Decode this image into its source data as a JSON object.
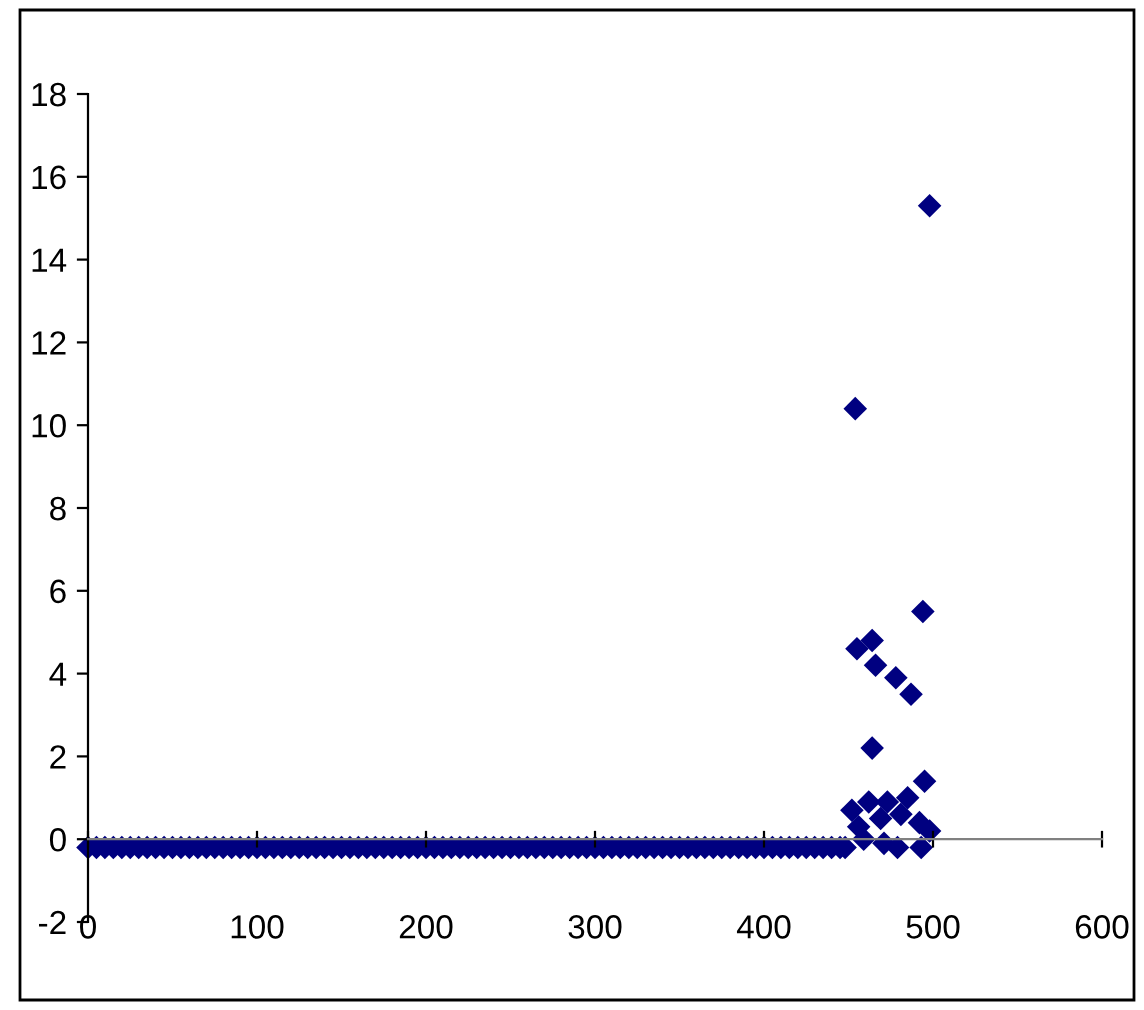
{
  "chart_data": {
    "type": "scatter",
    "marker": "diamond",
    "grid": false,
    "legend": false,
    "xlim": [
      0,
      600
    ],
    "ylim": [
      -2,
      18
    ],
    "xticks": [
      0,
      100,
      200,
      300,
      400,
      500,
      600
    ],
    "yticks": [
      -2,
      0,
      2,
      4,
      6,
      8,
      10,
      12,
      14,
      16,
      18
    ],
    "series": [
      {
        "color": "#000080",
        "x": [
          0,
          5,
          10,
          15,
          20,
          25,
          30,
          35,
          40,
          45,
          50,
          55,
          60,
          65,
          70,
          75,
          80,
          85,
          90,
          95,
          100,
          105,
          110,
          115,
          120,
          125,
          130,
          135,
          140,
          145,
          150,
          155,
          160,
          165,
          170,
          175,
          180,
          185,
          190,
          195,
          200,
          205,
          210,
          215,
          220,
          225,
          230,
          235,
          240,
          245,
          250,
          255,
          260,
          265,
          270,
          275,
          280,
          285,
          290,
          295,
          300,
          305,
          310,
          315,
          320,
          325,
          330,
          335,
          340,
          345,
          350,
          355,
          360,
          365,
          370,
          375,
          380,
          385,
          390,
          395,
          400,
          405,
          410,
          415,
          420,
          425,
          430,
          435,
          440,
          445,
          448,
          498,
          454,
          494,
          455,
          464,
          466,
          478,
          487,
          464,
          495,
          452,
          462,
          473,
          485,
          469,
          481,
          456,
          492,
          498,
          459,
          471,
          479,
          493
        ],
        "values": [
          -0.2,
          -0.2,
          -0.2,
          -0.2,
          -0.2,
          -0.2,
          -0.2,
          -0.2,
          -0.2,
          -0.2,
          -0.2,
          -0.2,
          -0.2,
          -0.2,
          -0.2,
          -0.2,
          -0.2,
          -0.2,
          -0.2,
          -0.2,
          -0.2,
          -0.2,
          -0.2,
          -0.2,
          -0.2,
          -0.2,
          -0.2,
          -0.2,
          -0.2,
          -0.2,
          -0.2,
          -0.2,
          -0.2,
          -0.2,
          -0.2,
          -0.2,
          -0.2,
          -0.2,
          -0.2,
          -0.2,
          -0.2,
          -0.2,
          -0.2,
          -0.2,
          -0.2,
          -0.2,
          -0.2,
          -0.2,
          -0.2,
          -0.2,
          -0.2,
          -0.2,
          -0.2,
          -0.2,
          -0.2,
          -0.2,
          -0.2,
          -0.2,
          -0.2,
          -0.2,
          -0.2,
          -0.2,
          -0.2,
          -0.2,
          -0.2,
          -0.2,
          -0.2,
          -0.2,
          -0.2,
          -0.2,
          -0.2,
          -0.2,
          -0.2,
          -0.2,
          -0.2,
          -0.2,
          -0.2,
          -0.2,
          -0.2,
          -0.2,
          -0.2,
          -0.2,
          -0.2,
          -0.2,
          -0.2,
          -0.2,
          -0.2,
          -0.2,
          -0.2,
          -0.2,
          -0.2,
          15.3,
          10.4,
          5.5,
          4.6,
          4.8,
          4.2,
          3.9,
          3.5,
          2.2,
          1.4,
          0.7,
          0.9,
          0.9,
          1.0,
          0.5,
          0.6,
          0.3,
          0.4,
          0.2,
          0.0,
          -0.1,
          -0.2,
          -0.2
        ]
      }
    ]
  }
}
